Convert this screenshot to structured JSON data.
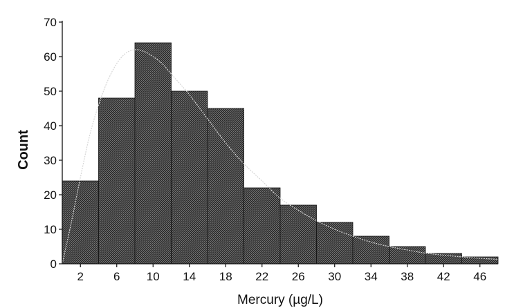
{
  "chart_data": {
    "type": "bar",
    "subtype": "histogram",
    "title": "",
    "xlabel": "Mercury (µg/L)",
    "ylabel": "Count",
    "bin_edges": [
      0,
      4,
      8,
      12,
      16,
      20,
      24,
      28,
      32,
      36,
      40,
      44,
      48
    ],
    "values": [
      24,
      48,
      64,
      50,
      45,
      22,
      17,
      12,
      8,
      5,
      3,
      2
    ],
    "xlim": [
      0,
      48
    ],
    "ylim": [
      0,
      70
    ],
    "x_tick_values": [
      2,
      6,
      10,
      14,
      18,
      22,
      26,
      30,
      34,
      38,
      42,
      46
    ],
    "x_tick_labels": [
      "2",
      "6",
      "10",
      "14",
      "18",
      "22",
      "26",
      "30",
      "34",
      "38",
      "42",
      "46"
    ],
    "y_tick_values": [
      0,
      10,
      20,
      30,
      40,
      50,
      60,
      70
    ],
    "y_tick_labels": [
      "0",
      "10",
      "20",
      "30",
      "40",
      "50",
      "60",
      "70"
    ],
    "fitted_curve": {
      "x": [
        0,
        1,
        2,
        3,
        4,
        5,
        6,
        7,
        8,
        9,
        10,
        11,
        12,
        13,
        14,
        16,
        18,
        20,
        22,
        24,
        26,
        28,
        30,
        32,
        34,
        36,
        38,
        40,
        42,
        44,
        46,
        48
      ],
      "y": [
        0,
        12,
        25,
        37,
        46,
        53,
        58,
        61,
        62,
        61.5,
        60,
        58,
        55,
        52,
        49,
        42,
        35,
        29,
        24,
        19,
        15.5,
        12.5,
        10,
        8,
        6.3,
        5,
        4,
        3.1,
        2.5,
        2,
        1.6,
        1.3
      ]
    },
    "grid": false,
    "legend": "none",
    "colors": {
      "bar_fill": "#2b2b2b",
      "bar_hatch": "#9a9a9a",
      "bar_edge": "#111111",
      "curve": "#d6d6d6",
      "axis": "#111111"
    }
  }
}
